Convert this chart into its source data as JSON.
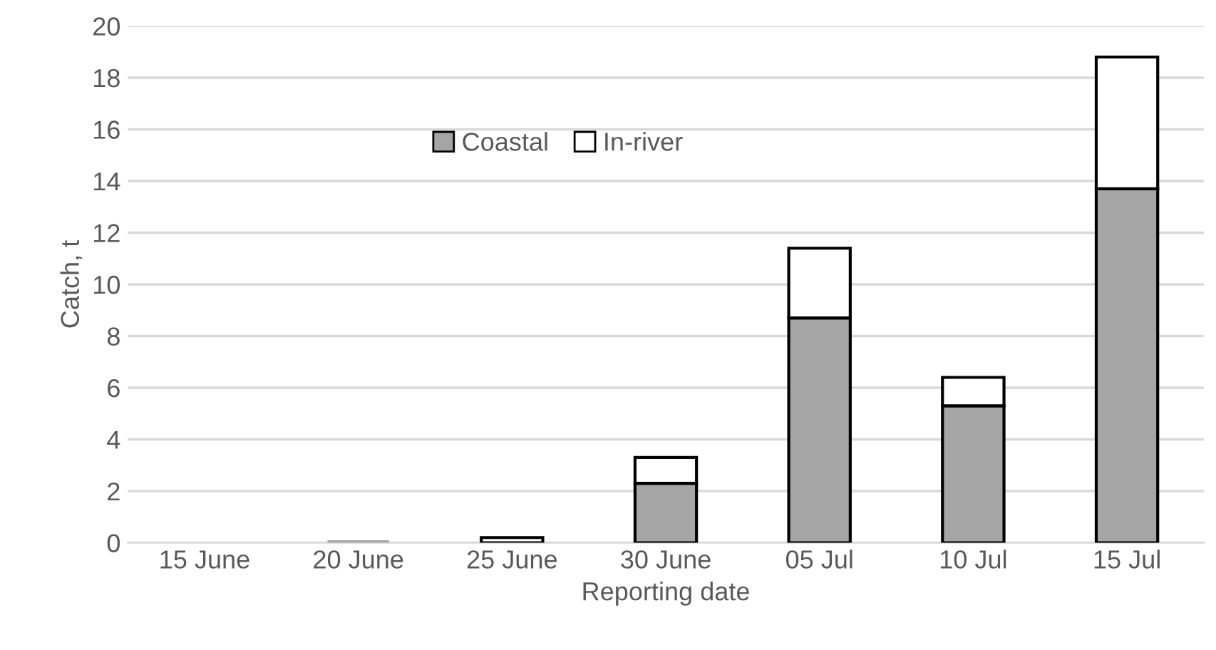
{
  "chart_data": {
    "type": "bar",
    "stacked": true,
    "xlabel": "Reporting date",
    "ylabel": "Catch, t",
    "categories": [
      "15 June",
      "20 June",
      "25 June",
      "30 June",
      "05 Jul",
      "10 Jul",
      "15 Jul"
    ],
    "series": [
      {
        "name": "Coastal",
        "color": "#a5a5a5",
        "values": [
          0,
          0.1,
          0,
          2.3,
          8.7,
          5.3,
          13.7
        ]
      },
      {
        "name": "In-river",
        "color": "#ffffff",
        "values": [
          0,
          0,
          0.2,
          1.0,
          2.7,
          1.1,
          5.1
        ]
      }
    ],
    "ylim": [
      0,
      20
    ],
    "yticks": [
      0,
      2,
      4,
      6,
      8,
      10,
      12,
      14,
      16,
      18,
      20
    ],
    "grid": "y",
    "legend": "top"
  }
}
